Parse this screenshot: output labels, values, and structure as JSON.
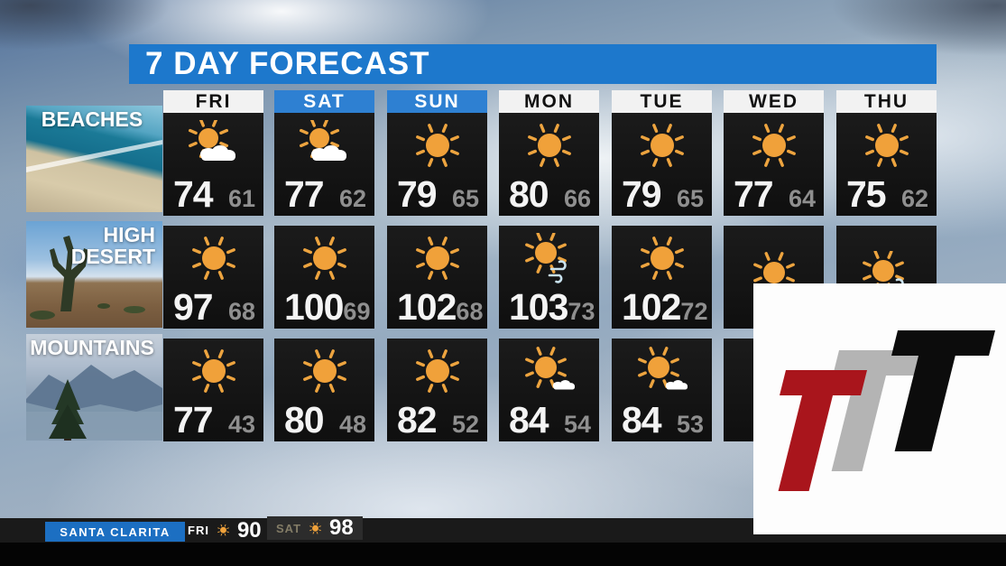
{
  "title": "7 DAY FORECAST",
  "days": [
    {
      "label": "FRI",
      "highlight": false
    },
    {
      "label": "SAT",
      "highlight": true
    },
    {
      "label": "SUN",
      "highlight": true
    },
    {
      "label": "MON",
      "highlight": false
    },
    {
      "label": "TUE",
      "highlight": false
    },
    {
      "label": "WED",
      "highlight": false
    },
    {
      "label": "THU",
      "highlight": false
    }
  ],
  "regions": [
    {
      "name": "BEACHES",
      "label_lines": [
        "BEACHES"
      ],
      "photo": "beach",
      "cells": [
        {
          "icon": "partly-cloudy",
          "hi": "74",
          "lo": "61"
        },
        {
          "icon": "partly-cloudy",
          "hi": "77",
          "lo": "62"
        },
        {
          "icon": "sunny",
          "hi": "79",
          "lo": "65"
        },
        {
          "icon": "sunny",
          "hi": "80",
          "lo": "66"
        },
        {
          "icon": "sunny",
          "hi": "79",
          "lo": "65"
        },
        {
          "icon": "sunny",
          "hi": "77",
          "lo": "64"
        },
        {
          "icon": "sunny",
          "hi": "75",
          "lo": "62"
        }
      ]
    },
    {
      "name": "HIGH DESERT",
      "label_lines": [
        "HIGH",
        "DESERT"
      ],
      "photo": "desert",
      "cells": [
        {
          "icon": "sunny",
          "hi": "97",
          "lo": "68"
        },
        {
          "icon": "sunny",
          "hi": "100",
          "lo": "69"
        },
        {
          "icon": "sunny",
          "hi": "102",
          "lo": "68"
        },
        {
          "icon": "sunny-windy",
          "hi": "103",
          "lo": "73"
        },
        {
          "icon": "sunny",
          "hi": "102",
          "lo": "72"
        },
        {
          "icon": "sunny-haze",
          "hi": "",
          "lo": ""
        },
        {
          "icon": "sunny-windy",
          "hi": "",
          "lo": ""
        }
      ]
    },
    {
      "name": "MOUNTAINS",
      "label_lines": [
        "MOUNTAINS"
      ],
      "photo": "mountains",
      "cells": [
        {
          "icon": "sunny",
          "hi": "77",
          "lo": "43"
        },
        {
          "icon": "sunny",
          "hi": "80",
          "lo": "48"
        },
        {
          "icon": "sunny",
          "hi": "82",
          "lo": "52"
        },
        {
          "icon": "mostly-sunny",
          "hi": "84",
          "lo": "54"
        },
        {
          "icon": "mostly-sunny",
          "hi": "84",
          "lo": "53"
        },
        {
          "icon": "",
          "hi": "",
          "lo": ""
        },
        {
          "icon": "",
          "hi": "",
          "lo": ""
        }
      ]
    }
  ],
  "ticker": {
    "location": "SANTA CLARITA",
    "items": [
      {
        "day": "FRI",
        "icon": "sunny",
        "temp": "90"
      },
      {
        "day": "SAT",
        "icon": "sunny",
        "temp": "98"
      }
    ]
  },
  "logo": {
    "letters": [
      {
        "name": "t-red",
        "color": "#a9151c"
      },
      {
        "name": "t-gray",
        "color": "#b4b4b4"
      },
      {
        "name": "t-black",
        "color": "#0c0c0c"
      }
    ]
  },
  "colors": {
    "banner_blue": "#1d78cc",
    "day_highlight_blue": "#2e80d2",
    "cell_black": "#141414",
    "hi_temp_white": "#f4f4f4",
    "lo_temp_gray": "#8f8f8f",
    "sun_orange": "#f0a13a",
    "ticker_blue": "#1c6fc2"
  },
  "chart_data": {
    "type": "table",
    "title": "7 DAY FORECAST",
    "columns": [
      "FRI",
      "SAT",
      "SUN",
      "MON",
      "TUE",
      "WED",
      "THU"
    ],
    "rows": [
      {
        "region": "BEACHES",
        "high": [
          74,
          77,
          79,
          80,
          79,
          77,
          75
        ],
        "low": [
          61,
          62,
          65,
          66,
          65,
          64,
          62
        ],
        "conditions": [
          "partly-cloudy",
          "partly-cloudy",
          "sunny",
          "sunny",
          "sunny",
          "sunny",
          "sunny"
        ]
      },
      {
        "region": "HIGH DESERT",
        "high": [
          97,
          100,
          102,
          103,
          102,
          null,
          null
        ],
        "low": [
          68,
          69,
          68,
          73,
          72,
          null,
          null
        ],
        "conditions": [
          "sunny",
          "sunny",
          "sunny",
          "sunny-windy",
          "sunny",
          "sunny-haze",
          "sunny-windy"
        ]
      },
      {
        "region": "MOUNTAINS",
        "high": [
          77,
          80,
          82,
          84,
          84,
          null,
          null
        ],
        "low": [
          43,
          48,
          52,
          54,
          53,
          null,
          null
        ],
        "conditions": [
          "sunny",
          "sunny",
          "sunny",
          "mostly-sunny",
          "mostly-sunny",
          null,
          null
        ]
      }
    ],
    "note": "WED/THU values for HIGH DESERT and MOUNTAINS hidden behind station logo overlay"
  }
}
